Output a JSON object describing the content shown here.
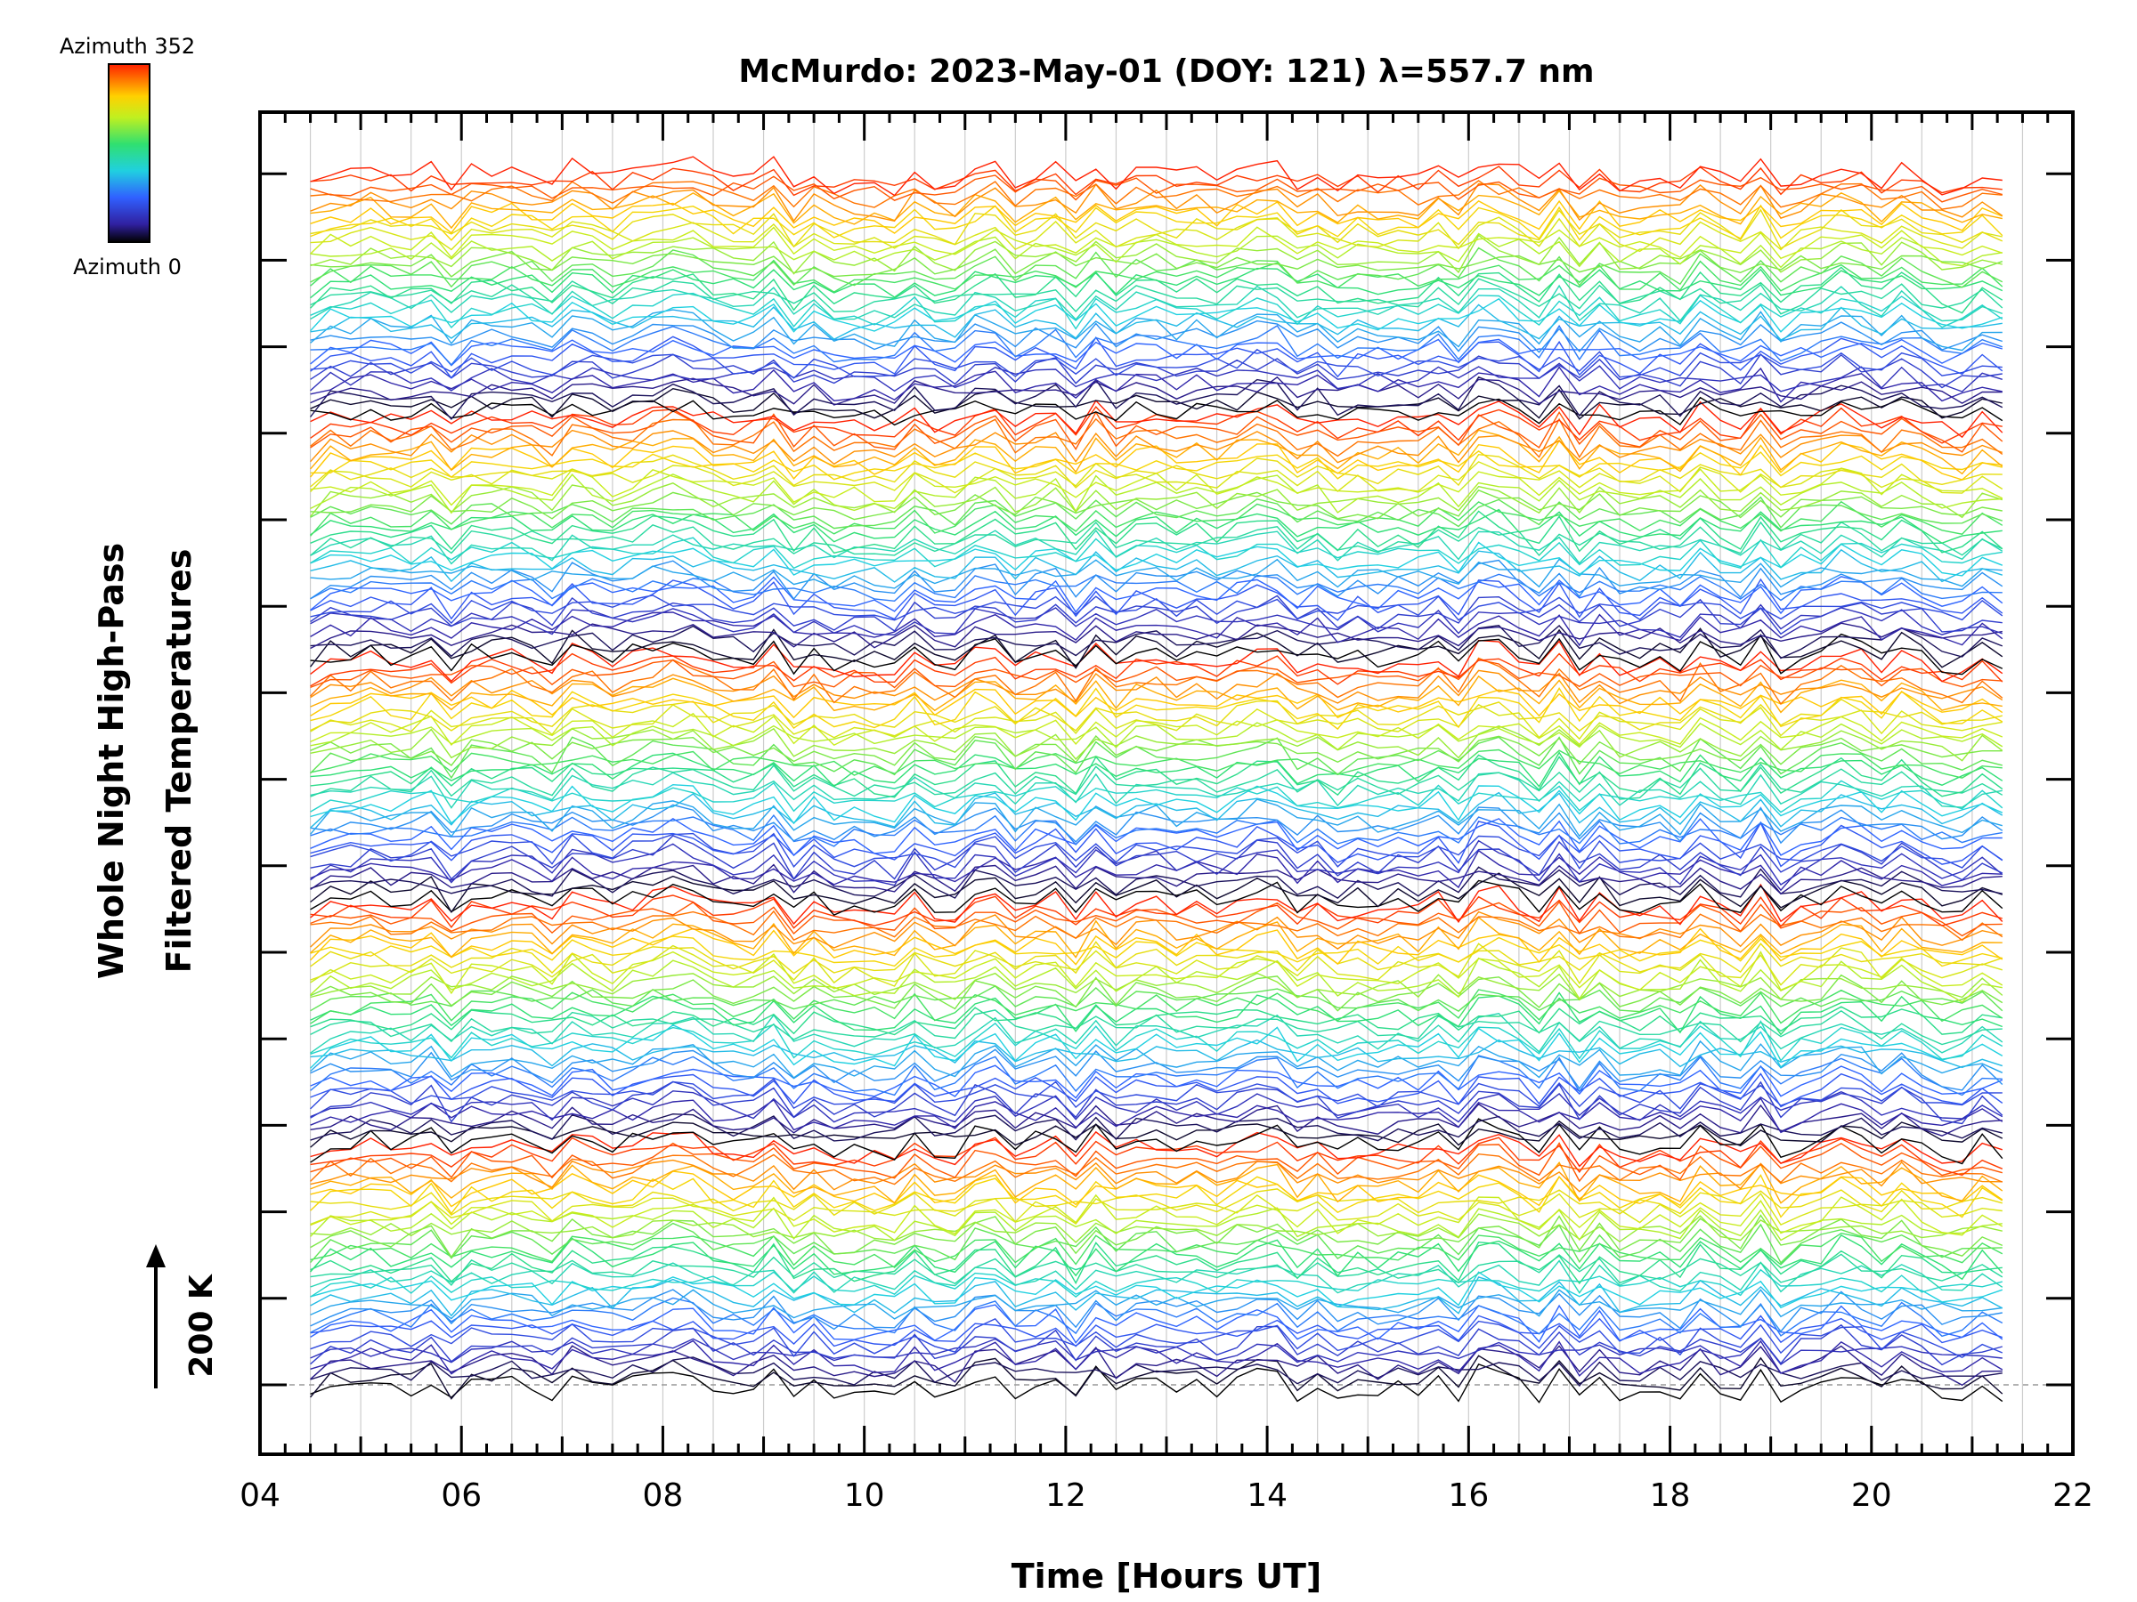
{
  "chart_data": {
    "type": "line",
    "title": "McMurdo: 2023-May-01 (DOY: 121) λ=557.7 nm",
    "xlabel": "Time [Hours UT]",
    "ylabel_line1": "Whole Night High-Pass",
    "ylabel_line2": "Filtered Temperatures",
    "xlim": [
      4,
      22
    ],
    "x_tick_labels": [
      "04",
      "06",
      "08",
      "10",
      "12",
      "14",
      "16",
      "18",
      "20",
      "22"
    ],
    "data_time_range": [
      4.5,
      21.3
    ],
    "grid_x": true,
    "scale_bar_label": "200 K",
    "colorbar": {
      "top_label": "Azimuth 352",
      "bottom_label": "Azimuth 0",
      "colormap": "rainbow",
      "placement": "top-left"
    },
    "colors": {
      "axis": "#000000",
      "grid": "#cccccc",
      "baseline": "#999999"
    }
  }
}
